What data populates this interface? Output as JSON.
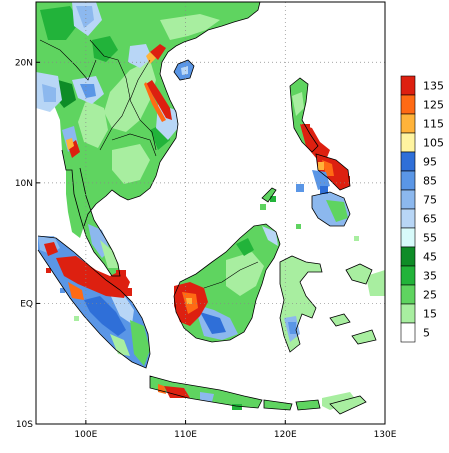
{
  "map": {
    "lon_range": [
      95,
      130
    ],
    "lat_range": [
      -10,
      25
    ],
    "lon_ticks": [
      {
        "value": 100,
        "label": "100E"
      },
      {
        "value": 110,
        "label": "110E"
      },
      {
        "value": 120,
        "label": "120E"
      },
      {
        "value": 130,
        "label": "130E"
      }
    ],
    "lat_ticks": [
      {
        "value": 20,
        "label": "20N"
      },
      {
        "value": 10,
        "label": "10N"
      },
      {
        "value": 0,
        "label": "EQ"
      },
      {
        "value": -10,
        "label": "10S"
      }
    ],
    "grid": "dotted",
    "colors": {
      "white": "#ffffff",
      "lightgreen": "#a8eea0",
      "midgreen": "#5fd460",
      "green": "#22b33a",
      "darkgreen": "#0e8c27",
      "cyan": "#d8fbfb",
      "lightblue": "#b8d6f6",
      "paleblue": "#8cb8ee",
      "blue": "#5a96e6",
      "deepblue": "#2f6fd8",
      "yellow": "#fff4a0",
      "orange": "#ffb33a",
      "darkorange": "#ff6a14",
      "red": "#dd2010"
    }
  },
  "colorbar": {
    "levels": [
      "135",
      "125",
      "115",
      "105",
      "95",
      "85",
      "75",
      "65",
      "55",
      "45",
      "35",
      "25",
      "15",
      "5"
    ],
    "colors": [
      "#dd2010",
      "#ff6a14",
      "#ffb33a",
      "#fff4a0",
      "#2f6fd8",
      "#5a96e6",
      "#8cb8ee",
      "#b8d6f6",
      "#d8fbfb",
      "#0e8c27",
      "#22b33a",
      "#5fd460",
      "#a8eea0",
      "#ffffff"
    ]
  }
}
